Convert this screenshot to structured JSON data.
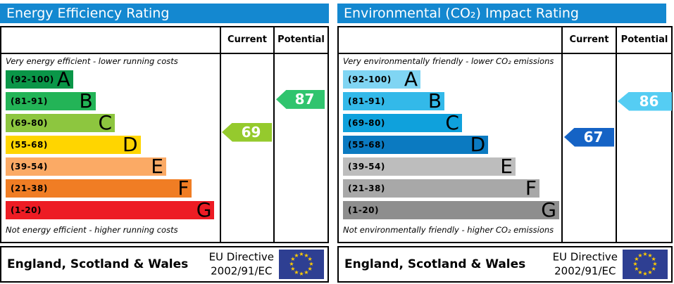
{
  "colors": {
    "header_blue": "#1488d0",
    "eu_flag_blue": "#2e3f92",
    "eu_flag_star": "#ffcc00",
    "border_black": "#000000"
  },
  "icons": {
    "eu_flag_star": "★"
  },
  "chart_data": [
    {
      "type": "bar",
      "title": "Energy Efficiency Rating",
      "column_headers": [
        "Current",
        "Potential"
      ],
      "top_note": "Very energy efficient - lower running costs",
      "bottom_note": "Not energy efficient - higher running costs",
      "value_range": [
        1,
        100
      ],
      "bands": [
        {
          "letter": "A",
          "range_label": "(92-100)",
          "min": 92,
          "max": 100,
          "color": "#0a9648",
          "width_pct": 31.5
        },
        {
          "letter": "B",
          "range_label": "(81-91)",
          "min": 81,
          "max": 91,
          "color": "#23b457",
          "width_pct": 42
        },
        {
          "letter": "C",
          "range_label": "(69-80)",
          "min": 69,
          "max": 80,
          "color": "#8dc63f",
          "width_pct": 51
        },
        {
          "letter": "D",
          "range_label": "(55-68)",
          "min": 55,
          "max": 68,
          "color": "#ffd500",
          "width_pct": 63
        },
        {
          "letter": "E",
          "range_label": "(39-54)",
          "min": 39,
          "max": 54,
          "color": "#fbaa65",
          "width_pct": 75
        },
        {
          "letter": "F",
          "range_label": "(21-38)",
          "min": 21,
          "max": 38,
          "color": "#f07d24",
          "width_pct": 87
        },
        {
          "letter": "G",
          "range_label": "(1-20)",
          "min": 1,
          "max": 20,
          "color": "#ed1c24",
          "width_pct": 97.5
        }
      ],
      "current": {
        "value": 69,
        "color": "#95ca2d"
      },
      "potential": {
        "value": 87,
        "color": "#30c46e"
      },
      "footer": {
        "region": "England, Scotland & Wales",
        "directive_line1": "EU Directive",
        "directive_line2": "2002/91/EC"
      }
    },
    {
      "type": "bar",
      "title": "Environmental (CO₂) Impact Rating",
      "column_headers": [
        "Current",
        "Potential"
      ],
      "top_note": "Very environmentally friendly - lower CO₂ emissions",
      "bottom_note": "Not environmentally friendly - higher CO₂ emissions",
      "value_range": [
        1,
        100
      ],
      "bands": [
        {
          "letter": "A",
          "range_label": "(92-100)",
          "min": 92,
          "max": 100,
          "color": "#80d5f3",
          "width_pct": 35.5
        },
        {
          "letter": "B",
          "range_label": "(81-91)",
          "min": 81,
          "max": 91,
          "color": "#33b9e9",
          "width_pct": 46.5
        },
        {
          "letter": "C",
          "range_label": "(69-80)",
          "min": 69,
          "max": 80,
          "color": "#0fa1dc",
          "width_pct": 54.5
        },
        {
          "letter": "D",
          "range_label": "(55-68)",
          "min": 55,
          "max": 68,
          "color": "#0b7ac1",
          "width_pct": 66.5
        },
        {
          "letter": "E",
          "range_label": "(39-54)",
          "min": 39,
          "max": 54,
          "color": "#bdbdbd",
          "width_pct": 79
        },
        {
          "letter": "F",
          "range_label": "(21-38)",
          "min": 21,
          "max": 38,
          "color": "#a8a8a8",
          "width_pct": 90
        },
        {
          "letter": "G",
          "range_label": "(1-20)",
          "min": 1,
          "max": 20,
          "color": "#8e8e8e",
          "width_pct": 99
        }
      ],
      "current": {
        "value": 67,
        "color": "#1563c5"
      },
      "potential": {
        "value": 86,
        "color": "#55cdf3"
      },
      "footer": {
        "region": "England, Scotland & Wales",
        "directive_line1": "EU Directive",
        "directive_line2": "2002/91/EC"
      }
    }
  ]
}
